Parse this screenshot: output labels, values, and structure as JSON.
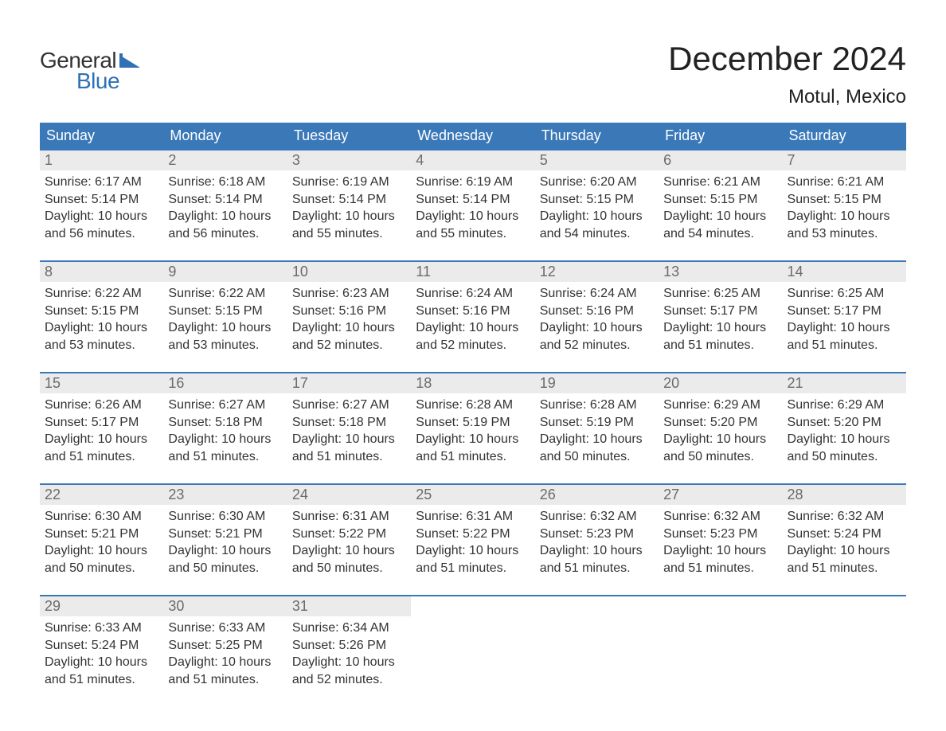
{
  "logo": {
    "text_general": "General",
    "text_blue": "Blue",
    "flag_color": "#2f71b4"
  },
  "title": {
    "month": "December 2024",
    "location": "Motul, Mexico"
  },
  "colors": {
    "header_bg": "#3a78b8",
    "header_text": "#ffffff",
    "daynum_bg": "#ebebeb",
    "daynum_text": "#6b6b6b",
    "body_text": "#333333",
    "week_border": "#3a78b8",
    "page_bg": "#ffffff"
  },
  "typography": {
    "month_title_fontsize": 42,
    "location_fontsize": 24,
    "weekday_fontsize": 18,
    "daynum_fontsize": 18,
    "daybody_fontsize": 16,
    "logo_fontsize": 28
  },
  "weekdays": [
    "Sunday",
    "Monday",
    "Tuesday",
    "Wednesday",
    "Thursday",
    "Friday",
    "Saturday"
  ],
  "weeks": [
    [
      {
        "n": "1",
        "sunrise": "Sunrise: 6:17 AM",
        "sunset": "Sunset: 5:14 PM",
        "d1": "Daylight: 10 hours",
        "d2": "and 56 minutes."
      },
      {
        "n": "2",
        "sunrise": "Sunrise: 6:18 AM",
        "sunset": "Sunset: 5:14 PM",
        "d1": "Daylight: 10 hours",
        "d2": "and 56 minutes."
      },
      {
        "n": "3",
        "sunrise": "Sunrise: 6:19 AM",
        "sunset": "Sunset: 5:14 PM",
        "d1": "Daylight: 10 hours",
        "d2": "and 55 minutes."
      },
      {
        "n": "4",
        "sunrise": "Sunrise: 6:19 AM",
        "sunset": "Sunset: 5:14 PM",
        "d1": "Daylight: 10 hours",
        "d2": "and 55 minutes."
      },
      {
        "n": "5",
        "sunrise": "Sunrise: 6:20 AM",
        "sunset": "Sunset: 5:15 PM",
        "d1": "Daylight: 10 hours",
        "d2": "and 54 minutes."
      },
      {
        "n": "6",
        "sunrise": "Sunrise: 6:21 AM",
        "sunset": "Sunset: 5:15 PM",
        "d1": "Daylight: 10 hours",
        "d2": "and 54 minutes."
      },
      {
        "n": "7",
        "sunrise": "Sunrise: 6:21 AM",
        "sunset": "Sunset: 5:15 PM",
        "d1": "Daylight: 10 hours",
        "d2": "and 53 minutes."
      }
    ],
    [
      {
        "n": "8",
        "sunrise": "Sunrise: 6:22 AM",
        "sunset": "Sunset: 5:15 PM",
        "d1": "Daylight: 10 hours",
        "d2": "and 53 minutes."
      },
      {
        "n": "9",
        "sunrise": "Sunrise: 6:22 AM",
        "sunset": "Sunset: 5:15 PM",
        "d1": "Daylight: 10 hours",
        "d2": "and 53 minutes."
      },
      {
        "n": "10",
        "sunrise": "Sunrise: 6:23 AM",
        "sunset": "Sunset: 5:16 PM",
        "d1": "Daylight: 10 hours",
        "d2": "and 52 minutes."
      },
      {
        "n": "11",
        "sunrise": "Sunrise: 6:24 AM",
        "sunset": "Sunset: 5:16 PM",
        "d1": "Daylight: 10 hours",
        "d2": "and 52 minutes."
      },
      {
        "n": "12",
        "sunrise": "Sunrise: 6:24 AM",
        "sunset": "Sunset: 5:16 PM",
        "d1": "Daylight: 10 hours",
        "d2": "and 52 minutes."
      },
      {
        "n": "13",
        "sunrise": "Sunrise: 6:25 AM",
        "sunset": "Sunset: 5:17 PM",
        "d1": "Daylight: 10 hours",
        "d2": "and 51 minutes."
      },
      {
        "n": "14",
        "sunrise": "Sunrise: 6:25 AM",
        "sunset": "Sunset: 5:17 PM",
        "d1": "Daylight: 10 hours",
        "d2": "and 51 minutes."
      }
    ],
    [
      {
        "n": "15",
        "sunrise": "Sunrise: 6:26 AM",
        "sunset": "Sunset: 5:17 PM",
        "d1": "Daylight: 10 hours",
        "d2": "and 51 minutes."
      },
      {
        "n": "16",
        "sunrise": "Sunrise: 6:27 AM",
        "sunset": "Sunset: 5:18 PM",
        "d1": "Daylight: 10 hours",
        "d2": "and 51 minutes."
      },
      {
        "n": "17",
        "sunrise": "Sunrise: 6:27 AM",
        "sunset": "Sunset: 5:18 PM",
        "d1": "Daylight: 10 hours",
        "d2": "and 51 minutes."
      },
      {
        "n": "18",
        "sunrise": "Sunrise: 6:28 AM",
        "sunset": "Sunset: 5:19 PM",
        "d1": "Daylight: 10 hours",
        "d2": "and 51 minutes."
      },
      {
        "n": "19",
        "sunrise": "Sunrise: 6:28 AM",
        "sunset": "Sunset: 5:19 PM",
        "d1": "Daylight: 10 hours",
        "d2": "and 50 minutes."
      },
      {
        "n": "20",
        "sunrise": "Sunrise: 6:29 AM",
        "sunset": "Sunset: 5:20 PM",
        "d1": "Daylight: 10 hours",
        "d2": "and 50 minutes."
      },
      {
        "n": "21",
        "sunrise": "Sunrise: 6:29 AM",
        "sunset": "Sunset: 5:20 PM",
        "d1": "Daylight: 10 hours",
        "d2": "and 50 minutes."
      }
    ],
    [
      {
        "n": "22",
        "sunrise": "Sunrise: 6:30 AM",
        "sunset": "Sunset: 5:21 PM",
        "d1": "Daylight: 10 hours",
        "d2": "and 50 minutes."
      },
      {
        "n": "23",
        "sunrise": "Sunrise: 6:30 AM",
        "sunset": "Sunset: 5:21 PM",
        "d1": "Daylight: 10 hours",
        "d2": "and 50 minutes."
      },
      {
        "n": "24",
        "sunrise": "Sunrise: 6:31 AM",
        "sunset": "Sunset: 5:22 PM",
        "d1": "Daylight: 10 hours",
        "d2": "and 50 minutes."
      },
      {
        "n": "25",
        "sunrise": "Sunrise: 6:31 AM",
        "sunset": "Sunset: 5:22 PM",
        "d1": "Daylight: 10 hours",
        "d2": "and 51 minutes."
      },
      {
        "n": "26",
        "sunrise": "Sunrise: 6:32 AM",
        "sunset": "Sunset: 5:23 PM",
        "d1": "Daylight: 10 hours",
        "d2": "and 51 minutes."
      },
      {
        "n": "27",
        "sunrise": "Sunrise: 6:32 AM",
        "sunset": "Sunset: 5:23 PM",
        "d1": "Daylight: 10 hours",
        "d2": "and 51 minutes."
      },
      {
        "n": "28",
        "sunrise": "Sunrise: 6:32 AM",
        "sunset": "Sunset: 5:24 PM",
        "d1": "Daylight: 10 hours",
        "d2": "and 51 minutes."
      }
    ],
    [
      {
        "n": "29",
        "sunrise": "Sunrise: 6:33 AM",
        "sunset": "Sunset: 5:24 PM",
        "d1": "Daylight: 10 hours",
        "d2": "and 51 minutes."
      },
      {
        "n": "30",
        "sunrise": "Sunrise: 6:33 AM",
        "sunset": "Sunset: 5:25 PM",
        "d1": "Daylight: 10 hours",
        "d2": "and 51 minutes."
      },
      {
        "n": "31",
        "sunrise": "Sunrise: 6:34 AM",
        "sunset": "Sunset: 5:26 PM",
        "d1": "Daylight: 10 hours",
        "d2": "and 52 minutes."
      },
      {
        "empty": true
      },
      {
        "empty": true
      },
      {
        "empty": true
      },
      {
        "empty": true
      }
    ]
  ]
}
